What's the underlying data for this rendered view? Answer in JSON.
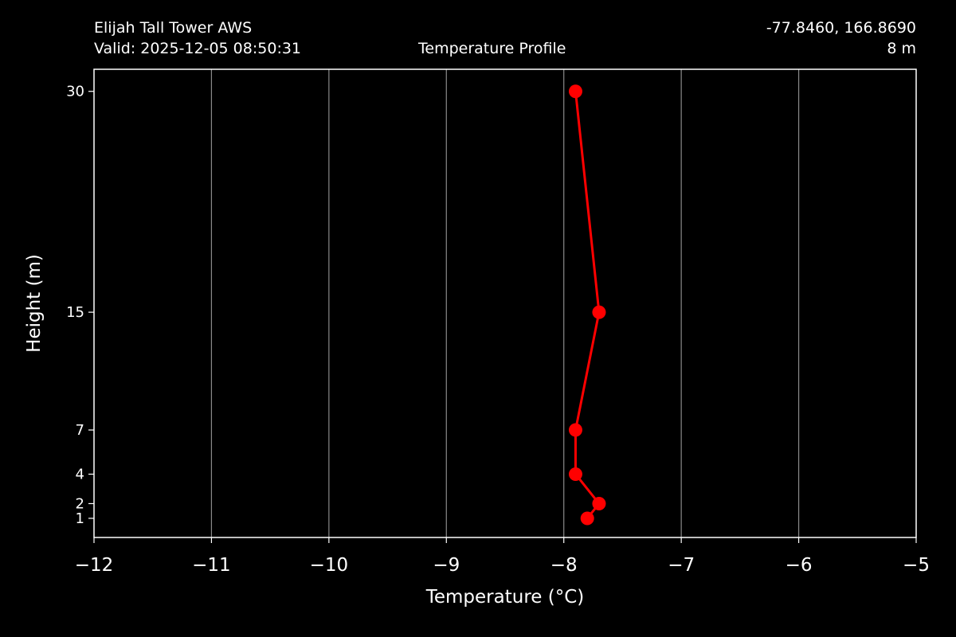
{
  "header": {
    "station": "Elijah Tall Tower AWS",
    "valid": "Valid: 2025-12-05 08:50:31",
    "center_title": "Temperature Profile",
    "coords": "-77.8460, 166.8690",
    "elevation": "8 m"
  },
  "chart_data": {
    "type": "line",
    "title": "Temperature Profile",
    "xlabel": "Temperature (°C)",
    "ylabel": "Height (m)",
    "xlim": [
      -12,
      -5
    ],
    "ylim": [
      -0.3,
      31.5
    ],
    "x_ticks": [
      -12,
      -11,
      -10,
      -9,
      -8,
      -7,
      -6,
      -5
    ],
    "x_tick_labels": [
      "−12",
      "−11",
      "−10",
      "−9",
      "−8",
      "−7",
      "−6",
      "−5"
    ],
    "y_ticks": [
      1,
      2,
      4,
      7,
      15,
      30
    ],
    "y_tick_labels": [
      "1",
      "2",
      "4",
      "7",
      "15",
      "30"
    ],
    "grid": "vertical",
    "series": [
      {
        "color": "#ff0000",
        "points": [
          {
            "x": -7.8,
            "y": 1
          },
          {
            "x": -7.7,
            "y": 2
          },
          {
            "x": -7.9,
            "y": 4
          },
          {
            "x": -7.9,
            "y": 7
          },
          {
            "x": -7.7,
            "y": 15
          },
          {
            "x": -7.9,
            "y": 30
          }
        ]
      }
    ],
    "colors": {
      "background": "#000000",
      "axes": "#ffffff",
      "grid": "#8a8a8a",
      "line": "#ff0000"
    }
  }
}
